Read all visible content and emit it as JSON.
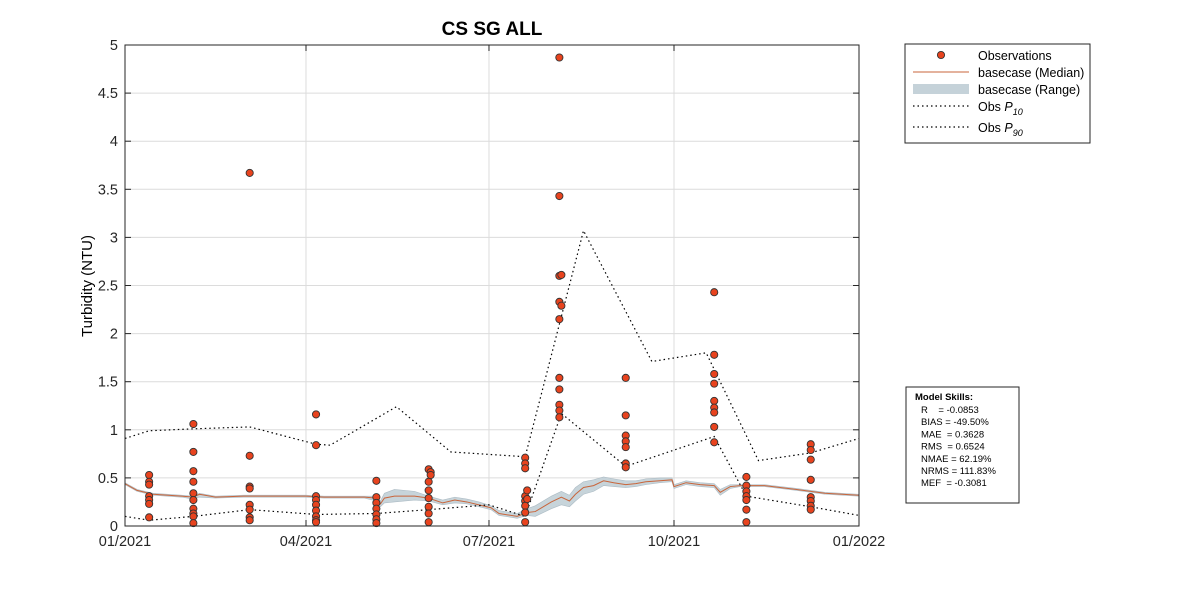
{
  "chart_data": {
    "type": "scatter",
    "title": "CS SG ALL",
    "ylabel": "Turbidity (NTU)",
    "xlabel": "",
    "x_ticks": [
      "01/2021",
      "04/2021",
      "07/2021",
      "10/2021",
      "01/2022"
    ],
    "x_range": [
      "2021-01-01",
      "2022-01-01"
    ],
    "y_ticks": [
      "0",
      "0.5",
      "1",
      "1.5",
      "2",
      "2.5",
      "3",
      "3.5",
      "4",
      "4.5",
      "5"
    ],
    "ylim": [
      0,
      5
    ],
    "grid": true,
    "legend_position": "outside-top-right",
    "colors": {
      "observations_fill": "#e8431e",
      "observations_edge": "#333333",
      "median_line": "#c8653b",
      "range_fill": "#c5d2d9",
      "percentile_line": "#000000",
      "axes": "#262626",
      "grid": "#dcdcdc"
    },
    "legend": [
      {
        "key": "observations",
        "label": "Observations",
        "sub": ""
      },
      {
        "key": "median",
        "label": "basecase (Median)",
        "sub": ""
      },
      {
        "key": "range",
        "label": "basecase (Range)",
        "sub": ""
      },
      {
        "key": "p10",
        "label": "Obs P",
        "sub": "10"
      },
      {
        "key": "p90",
        "label": "Obs P",
        "sub": "90"
      }
    ],
    "series": [
      {
        "name": "Observations",
        "type": "scatter",
        "points": [
          [
            "2021-01-13",
            0.53
          ],
          [
            "2021-01-13",
            0.46
          ],
          [
            "2021-01-13",
            0.43
          ],
          [
            "2021-01-13",
            0.31
          ],
          [
            "2021-01-13",
            0.27
          ],
          [
            "2021-01-13",
            0.23
          ],
          [
            "2021-01-13",
            0.09
          ],
          [
            "2021-02-04",
            1.06
          ],
          [
            "2021-02-04",
            0.77
          ],
          [
            "2021-02-04",
            0.57
          ],
          [
            "2021-02-04",
            0.46
          ],
          [
            "2021-02-04",
            0.34
          ],
          [
            "2021-02-04",
            0.27
          ],
          [
            "2021-02-04",
            0.18
          ],
          [
            "2021-02-04",
            0.13
          ],
          [
            "2021-02-04",
            0.1
          ],
          [
            "2021-02-04",
            0.03
          ],
          [
            "2021-03-04",
            3.67
          ],
          [
            "2021-03-04",
            0.73
          ],
          [
            "2021-03-04",
            0.41
          ],
          [
            "2021-03-04",
            0.39
          ],
          [
            "2021-03-04",
            0.22
          ],
          [
            "2021-03-04",
            0.17
          ],
          [
            "2021-03-04",
            0.09
          ],
          [
            "2021-03-04",
            0.06
          ],
          [
            "2021-04-06",
            1.16
          ],
          [
            "2021-04-06",
            0.84
          ],
          [
            "2021-04-06",
            0.31
          ],
          [
            "2021-04-06",
            0.27
          ],
          [
            "2021-04-06",
            0.22
          ],
          [
            "2021-04-06",
            0.16
          ],
          [
            "2021-04-06",
            0.1
          ],
          [
            "2021-04-06",
            0.06
          ],
          [
            "2021-04-06",
            0.04
          ],
          [
            "2021-05-06",
            0.47
          ],
          [
            "2021-05-06",
            0.3
          ],
          [
            "2021-05-06",
            0.24
          ],
          [
            "2021-05-06",
            0.18
          ],
          [
            "2021-05-06",
            0.12
          ],
          [
            "2021-05-06",
            0.07
          ],
          [
            "2021-05-06",
            0.03
          ],
          [
            "2021-06-01",
            0.59
          ],
          [
            "2021-06-01",
            0.46
          ],
          [
            "2021-06-01",
            0.37
          ],
          [
            "2021-06-01",
            0.29
          ],
          [
            "2021-06-01",
            0.2
          ],
          [
            "2021-06-01",
            0.13
          ],
          [
            "2021-06-01",
            0.04
          ],
          [
            "2021-06-02",
            0.56
          ],
          [
            "2021-06-02",
            0.53
          ],
          [
            "2021-07-19",
            0.71
          ],
          [
            "2021-07-19",
            0.65
          ],
          [
            "2021-07-19",
            0.6
          ],
          [
            "2021-07-19",
            0.31
          ],
          [
            "2021-07-19",
            0.26
          ],
          [
            "2021-07-19",
            0.21
          ],
          [
            "2021-07-19",
            0.14
          ],
          [
            "2021-07-19",
            0.04
          ],
          [
            "2021-07-20",
            0.37
          ],
          [
            "2021-07-20",
            0.28
          ],
          [
            "2021-08-05",
            4.87
          ],
          [
            "2021-08-05",
            3.43
          ],
          [
            "2021-08-05",
            2.6
          ],
          [
            "2021-08-05",
            2.33
          ],
          [
            "2021-08-05",
            2.15
          ],
          [
            "2021-08-05",
            1.54
          ],
          [
            "2021-08-05",
            1.42
          ],
          [
            "2021-08-05",
            1.26
          ],
          [
            "2021-08-05",
            1.2
          ],
          [
            "2021-08-05",
            1.13
          ],
          [
            "2021-08-06",
            2.61
          ],
          [
            "2021-08-06",
            2.29
          ],
          [
            "2021-09-07",
            1.54
          ],
          [
            "2021-09-07",
            1.15
          ],
          [
            "2021-09-07",
            0.94
          ],
          [
            "2021-09-07",
            0.88
          ],
          [
            "2021-09-07",
            0.82
          ],
          [
            "2021-09-07",
            0.65
          ],
          [
            "2021-09-07",
            0.61
          ],
          [
            "2021-10-21",
            2.43
          ],
          [
            "2021-10-21",
            1.78
          ],
          [
            "2021-10-21",
            1.58
          ],
          [
            "2021-10-21",
            1.48
          ],
          [
            "2021-10-21",
            1.3
          ],
          [
            "2021-10-21",
            1.23
          ],
          [
            "2021-10-21",
            1.18
          ],
          [
            "2021-10-21",
            1.03
          ],
          [
            "2021-10-21",
            0.87
          ],
          [
            "2021-11-06",
            0.51
          ],
          [
            "2021-11-06",
            0.42
          ],
          [
            "2021-11-06",
            0.36
          ],
          [
            "2021-11-06",
            0.31
          ],
          [
            "2021-11-06",
            0.27
          ],
          [
            "2021-11-06",
            0.17
          ],
          [
            "2021-11-06",
            0.04
          ],
          [
            "2021-12-08",
            0.85
          ],
          [
            "2021-12-08",
            0.79
          ],
          [
            "2021-12-08",
            0.69
          ],
          [
            "2021-12-08",
            0.48
          ],
          [
            "2021-12-08",
            0.3
          ],
          [
            "2021-12-08",
            0.26
          ],
          [
            "2021-12-08",
            0.21
          ],
          [
            "2021-12-08",
            0.17
          ]
        ]
      },
      {
        "name": "basecase (Median)",
        "type": "line",
        "points": [
          [
            "2021-01-01",
            0.44
          ],
          [
            "2021-01-07",
            0.37
          ],
          [
            "2021-01-15",
            0.33
          ],
          [
            "2021-01-29",
            0.31
          ],
          [
            "2021-02-04",
            0.3
          ],
          [
            "2021-02-07",
            0.33
          ],
          [
            "2021-02-15",
            0.3
          ],
          [
            "2021-03-01",
            0.31
          ],
          [
            "2021-03-15",
            0.31
          ],
          [
            "2021-04-01",
            0.31
          ],
          [
            "2021-04-10",
            0.3
          ],
          [
            "2021-04-20",
            0.3
          ],
          [
            "2021-04-30",
            0.3
          ],
          [
            "2021-05-06",
            0.29
          ],
          [
            "2021-05-08",
            0.23
          ],
          [
            "2021-05-10",
            0.29
          ],
          [
            "2021-05-15",
            0.31
          ],
          [
            "2021-05-25",
            0.31
          ],
          [
            "2021-06-01",
            0.29
          ],
          [
            "2021-06-08",
            0.24
          ],
          [
            "2021-06-14",
            0.27
          ],
          [
            "2021-06-20",
            0.25
          ],
          [
            "2021-06-26",
            0.22
          ],
          [
            "2021-07-02",
            0.19
          ],
          [
            "2021-07-06",
            0.13
          ],
          [
            "2021-07-15",
            0.1
          ],
          [
            "2021-07-20",
            0.14
          ],
          [
            "2021-07-24",
            0.15
          ],
          [
            "2021-08-01",
            0.25
          ],
          [
            "2021-08-06",
            0.3
          ],
          [
            "2021-08-10",
            0.26
          ],
          [
            "2021-08-13",
            0.33
          ],
          [
            "2021-08-17",
            0.4
          ],
          [
            "2021-08-22",
            0.42
          ],
          [
            "2021-08-27",
            0.47
          ],
          [
            "2021-09-01",
            0.45
          ],
          [
            "2021-09-07",
            0.43
          ],
          [
            "2021-09-12",
            0.44
          ],
          [
            "2021-09-17",
            0.46
          ],
          [
            "2021-09-24",
            0.47
          ],
          [
            "2021-09-30",
            0.48
          ],
          [
            "2021-10-01",
            0.41
          ],
          [
            "2021-10-07",
            0.45
          ],
          [
            "2021-10-14",
            0.43
          ],
          [
            "2021-10-21",
            0.42
          ],
          [
            "2021-10-24",
            0.35
          ],
          [
            "2021-10-29",
            0.41
          ],
          [
            "2021-11-03",
            0.42
          ],
          [
            "2021-11-15",
            0.42
          ],
          [
            "2021-12-01",
            0.38
          ],
          [
            "2021-12-15",
            0.34
          ],
          [
            "2022-01-01",
            0.32
          ]
        ]
      },
      {
        "name": "basecase (Range)",
        "type": "area",
        "points": [
          [
            "2021-01-01",
            0.43,
            0.45
          ],
          [
            "2021-01-07",
            0.36,
            0.38
          ],
          [
            "2021-01-15",
            0.32,
            0.34
          ],
          [
            "2021-01-29",
            0.3,
            0.32
          ],
          [
            "2021-02-04",
            0.28,
            0.31
          ],
          [
            "2021-02-07",
            0.3,
            0.34
          ],
          [
            "2021-02-15",
            0.29,
            0.31
          ],
          [
            "2021-03-01",
            0.3,
            0.32
          ],
          [
            "2021-03-15",
            0.3,
            0.32
          ],
          [
            "2021-04-01",
            0.3,
            0.32
          ],
          [
            "2021-04-10",
            0.29,
            0.31
          ],
          [
            "2021-04-20",
            0.29,
            0.31
          ],
          [
            "2021-04-30",
            0.29,
            0.31
          ],
          [
            "2021-05-06",
            0.26,
            0.31
          ],
          [
            "2021-05-08",
            0.2,
            0.26
          ],
          [
            "2021-05-10",
            0.24,
            0.34
          ],
          [
            "2021-05-15",
            0.25,
            0.38
          ],
          [
            "2021-05-25",
            0.27,
            0.36
          ],
          [
            "2021-06-01",
            0.26,
            0.31
          ],
          [
            "2021-06-08",
            0.22,
            0.27
          ],
          [
            "2021-06-14",
            0.24,
            0.3
          ],
          [
            "2021-06-20",
            0.23,
            0.28
          ],
          [
            "2021-06-26",
            0.2,
            0.25
          ],
          [
            "2021-07-02",
            0.17,
            0.21
          ],
          [
            "2021-07-06",
            0.11,
            0.16
          ],
          [
            "2021-07-15",
            0.08,
            0.13
          ],
          [
            "2021-07-20",
            0.11,
            0.18
          ],
          [
            "2021-07-24",
            0.1,
            0.21
          ],
          [
            "2021-08-01",
            0.18,
            0.31
          ],
          [
            "2021-08-06",
            0.22,
            0.36
          ],
          [
            "2021-08-10",
            0.2,
            0.32
          ],
          [
            "2021-08-13",
            0.26,
            0.4
          ],
          [
            "2021-08-17",
            0.33,
            0.46
          ],
          [
            "2021-08-22",
            0.36,
            0.48
          ],
          [
            "2021-08-27",
            0.42,
            0.51
          ],
          [
            "2021-09-01",
            0.41,
            0.49
          ],
          [
            "2021-09-07",
            0.4,
            0.47
          ],
          [
            "2021-09-12",
            0.41,
            0.47
          ],
          [
            "2021-09-17",
            0.43,
            0.49
          ],
          [
            "2021-09-24",
            0.45,
            0.5
          ],
          [
            "2021-09-30",
            0.46,
            0.5
          ],
          [
            "2021-10-01",
            0.39,
            0.43
          ],
          [
            "2021-10-07",
            0.43,
            0.47
          ],
          [
            "2021-10-14",
            0.41,
            0.45
          ],
          [
            "2021-10-21",
            0.4,
            0.44
          ],
          [
            "2021-10-24",
            0.32,
            0.38
          ],
          [
            "2021-10-29",
            0.39,
            0.43
          ],
          [
            "2021-11-03",
            0.41,
            0.43
          ],
          [
            "2021-11-15",
            0.41,
            0.43
          ],
          [
            "2021-12-01",
            0.37,
            0.39
          ],
          [
            "2021-12-15",
            0.33,
            0.35
          ],
          [
            "2022-01-01",
            0.31,
            0.33
          ]
        ]
      },
      {
        "name": "Obs P10",
        "type": "line",
        "points": [
          [
            "2021-01-01",
            0.1
          ],
          [
            "2021-01-13",
            0.06
          ],
          [
            "2021-02-04",
            0.1
          ],
          [
            "2021-03-04",
            0.17
          ],
          [
            "2021-04-06",
            0.12
          ],
          [
            "2021-05-06",
            0.13
          ],
          [
            "2021-06-01",
            0.17
          ],
          [
            "2021-07-01",
            0.22
          ],
          [
            "2021-07-19",
            0.1
          ],
          [
            "2021-08-06",
            1.17
          ],
          [
            "2021-09-07",
            0.62
          ],
          [
            "2021-10-21",
            0.93
          ],
          [
            "2021-11-06",
            0.31
          ],
          [
            "2021-12-08",
            0.2
          ],
          [
            "2022-01-01",
            0.11
          ]
        ]
      },
      {
        "name": "Obs P90",
        "type": "line",
        "points": [
          [
            "2021-01-01",
            0.91
          ],
          [
            "2021-01-13",
            0.99
          ],
          [
            "2021-02-04",
            1.01
          ],
          [
            "2021-03-04",
            1.03
          ],
          [
            "2021-04-06",
            0.85
          ],
          [
            "2021-04-13",
            0.84
          ],
          [
            "2021-05-16",
            1.24
          ],
          [
            "2021-06-12",
            0.77
          ],
          [
            "2021-07-19",
            0.72
          ],
          [
            "2021-08-17",
            3.07
          ],
          [
            "2021-09-20",
            1.71
          ],
          [
            "2021-10-17",
            1.8
          ],
          [
            "2021-11-12",
            0.68
          ],
          [
            "2021-12-08",
            0.76
          ],
          [
            "2022-01-01",
            0.91
          ]
        ]
      }
    ]
  },
  "skills": {
    "title": "Model Skills:",
    "lines": [
      "R    = -0.0853",
      "BIAS = -49.50%",
      "MAE  = 0.3628",
      "RMS  = 0.6524",
      "NMAE = 62.19%",
      "NRMS = 111.83%",
      "MEF  = -0.3081"
    ]
  }
}
